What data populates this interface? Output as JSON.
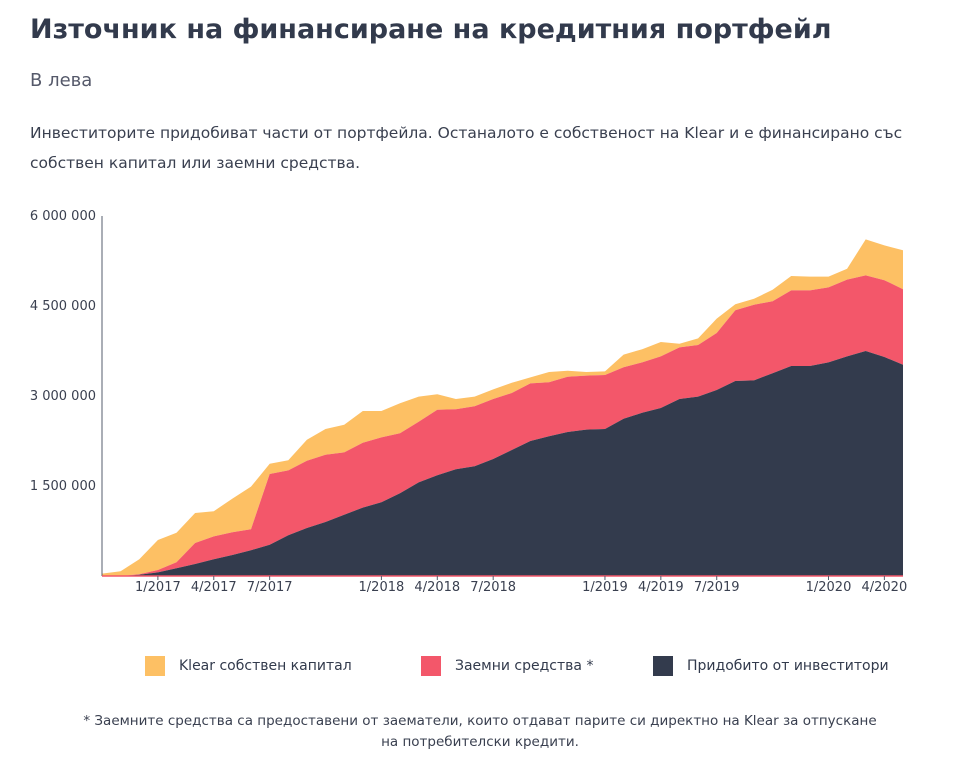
{
  "title": "Източник на финансиране на кредитния портфейл",
  "subtitle": "В лева",
  "description": "Инвеститорите придобиват части от портфейла. Останалото е собственост на Klear и е финансирано със собствен капитал или заемни средства.",
  "footnote": "* Заемните средства са предоставени от заематели, които отдават парите си директно на Klear за отпускане на потребителски кредити.",
  "colors": {
    "klear": "#fdc064",
    "borrowed": "#f3576a",
    "investors": "#333b4d",
    "axis": "#555c6c"
  },
  "chart_data": {
    "type": "area",
    "stacked": true,
    "title": "Източник на финансиране на кредитния портфейл",
    "ylabel": "В лева",
    "ylim": [
      0,
      6000000
    ],
    "yticks": [
      1500000,
      3000000,
      4500000,
      6000000
    ],
    "ytick_labels": [
      "1 500 000",
      "3 000 000",
      "4 500 000",
      "6 000 000"
    ],
    "xticks": [
      {
        "index": 3,
        "label": "1/2017"
      },
      {
        "index": 6,
        "label": "4/2017"
      },
      {
        "index": 9,
        "label": "7/2017"
      },
      {
        "index": 15,
        "label": "1/2018"
      },
      {
        "index": 18,
        "label": "4/2018"
      },
      {
        "index": 21,
        "label": "7/2018"
      },
      {
        "index": 27,
        "label": "1/2019"
      },
      {
        "index": 30,
        "label": "4/2019"
      },
      {
        "index": 33,
        "label": "7/2019"
      },
      {
        "index": 39,
        "label": "1/2020"
      },
      {
        "index": 42,
        "label": "4/2020"
      }
    ],
    "x_count": 44,
    "series": [
      {
        "name": "Придобито от инвеститори",
        "color_key": "investors",
        "values": [
          0,
          0,
          20000,
          60000,
          130000,
          200000,
          280000,
          350000,
          430000,
          520000,
          680000,
          800000,
          900000,
          1020000,
          1140000,
          1230000,
          1380000,
          1560000,
          1680000,
          1780000,
          1830000,
          1950000,
          2100000,
          2250000,
          2330000,
          2400000,
          2440000,
          2450000,
          2620000,
          2720000,
          2800000,
          2950000,
          2990000,
          3100000,
          3250000,
          3260000,
          3380000,
          3500000,
          3500000,
          3560000,
          3660000,
          3750000,
          3650000,
          3520000
        ]
      },
      {
        "name": "Заемни средства *",
        "color_key": "borrowed",
        "values": [
          0,
          0,
          10000,
          40000,
          100000,
          350000,
          380000,
          380000,
          350000,
          1180000,
          1080000,
          1120000,
          1120000,
          1040000,
          1080000,
          1080000,
          1000000,
          1010000,
          1090000,
          1000000,
          1000000,
          1000000,
          950000,
          960000,
          900000,
          920000,
          900000,
          900000,
          860000,
          840000,
          860000,
          860000,
          860000,
          950000,
          1180000,
          1260000,
          1200000,
          1260000,
          1260000,
          1250000,
          1280000,
          1260000,
          1280000,
          1260000
        ]
      },
      {
        "name": "Klear собствен капитал",
        "color_key": "klear",
        "values": [
          40000,
          80000,
          250000,
          500000,
          490000,
          500000,
          420000,
          560000,
          710000,
          170000,
          170000,
          350000,
          430000,
          460000,
          530000,
          440000,
          500000,
          420000,
          260000,
          170000,
          160000,
          160000,
          170000,
          100000,
          170000,
          100000,
          60000,
          60000,
          210000,
          220000,
          240000,
          60000,
          110000,
          240000,
          100000,
          100000,
          190000,
          240000,
          230000,
          180000,
          180000,
          600000,
          580000,
          650000
        ]
      }
    ],
    "legend": [
      "Klear собствен капитал",
      "Заемни средства *",
      "Придобито от инвеститори"
    ],
    "legend_position": "bottom"
  }
}
